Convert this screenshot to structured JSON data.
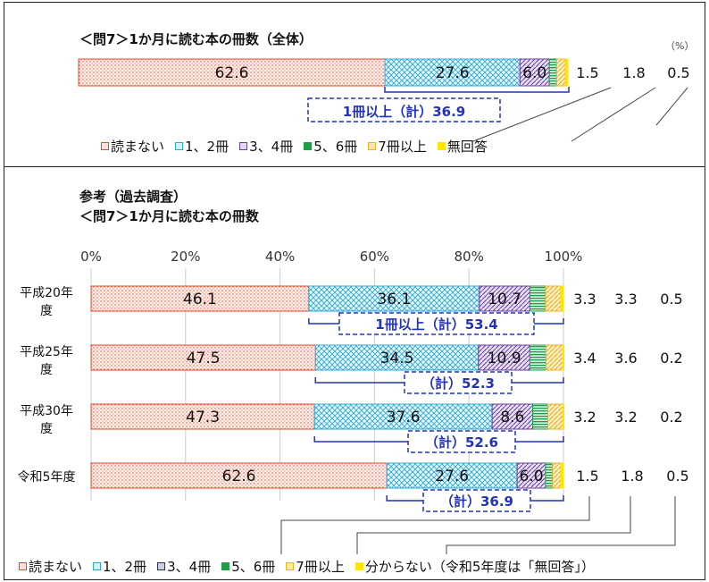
{
  "top": {
    "title": "＜問7＞1か月に読む本の冊数（全体）",
    "unit": "（%）",
    "sum_label": "1冊以上（計）36.9",
    "legend": [
      "読まない",
      "1、2冊",
      "3、4冊",
      "5、6冊",
      "7冊以上",
      "無回答"
    ]
  },
  "bottom": {
    "title1": "参考（過去調査）",
    "title2": "＜問7＞1か月に読む本の冊数",
    "axis_ticks": [
      "0%",
      "20%",
      "40%",
      "60%",
      "80%",
      "100%"
    ],
    "row_labels": [
      [
        "平成20年",
        "度"
      ],
      [
        "平成25年",
        "度"
      ],
      [
        "平成30年",
        "度"
      ],
      [
        "令和5年度"
      ]
    ],
    "sum_labels": [
      "1冊以上（計）53.4",
      "（計）52.3",
      "（計）52.6",
      "（計）36.9"
    ],
    "legend": [
      "読まない",
      "1、2冊",
      "3、4冊",
      "5、6冊",
      "7冊以上",
      "分からない（令和5年度は「無回答」）"
    ]
  },
  "colors": {
    "none": "#e8442a",
    "one_two": "#2aa8d8",
    "three_four": "#6b3fa0",
    "five_six": "#1f9e4a",
    "seven_plus": "#f0b020",
    "no_answer": "#ffe600",
    "sum_box": "#2233bb"
  },
  "chart_data": [
    {
      "type": "bar",
      "orientation": "horizontal",
      "stacked": true,
      "categories": [
        "全体"
      ],
      "series": [
        {
          "name": "読まない",
          "values": [
            62.6
          ]
        },
        {
          "name": "1、2冊",
          "values": [
            27.6
          ]
        },
        {
          "name": "3、4冊",
          "values": [
            6.0
          ]
        },
        {
          "name": "5、6冊",
          "values": [
            1.5
          ]
        },
        {
          "name": "7冊以上",
          "values": [
            1.8
          ]
        },
        {
          "name": "無回答",
          "values": [
            0.5
          ]
        }
      ],
      "data_labels": [
        "62.6",
        "27.6",
        "6.0",
        "1.5",
        "1.8",
        "0.5"
      ],
      "title": "＜問7＞1か月に読む本の冊数（全体）",
      "xlim": [
        0,
        100
      ]
    },
    {
      "type": "bar",
      "orientation": "horizontal",
      "stacked": true,
      "categories": [
        "平成20年度",
        "平成25年度",
        "平成30年度",
        "令和5年度"
      ],
      "series": [
        {
          "name": "読まない",
          "values": [
            46.1,
            47.5,
            47.3,
            62.6
          ]
        },
        {
          "name": "1、2冊",
          "values": [
            36.1,
            34.5,
            37.6,
            27.6
          ]
        },
        {
          "name": "3、4冊",
          "values": [
            10.7,
            10.9,
            8.6,
            6.0
          ]
        },
        {
          "name": "5、6冊",
          "values": [
            3.3,
            3.4,
            3.2,
            1.5
          ]
        },
        {
          "name": "7冊以上",
          "values": [
            3.3,
            3.6,
            3.2,
            1.8
          ]
        },
        {
          "name": "分からない（令和5年度は「無回答」）",
          "values": [
            0.5,
            0.2,
            0.2,
            0.5
          ]
        }
      ],
      "data_labels": [
        [
          "46.1",
          "36.1",
          "10.7",
          "3.3",
          "3.3",
          "0.5"
        ],
        [
          "47.5",
          "34.5",
          "10.9",
          "3.4",
          "3.6",
          "0.2"
        ],
        [
          "47.3",
          "37.6",
          "8.6",
          "3.2",
          "3.2",
          "0.2"
        ],
        [
          "62.6",
          "27.6",
          "6.0",
          "1.5",
          "1.8",
          "0.5"
        ]
      ],
      "title": "参考（過去調査） ＜問7＞1か月に読む本の冊数",
      "xlim": [
        0,
        100
      ],
      "xticks": [
        "0%",
        "20%",
        "40%",
        "60%",
        "80%",
        "100%"
      ]
    }
  ]
}
